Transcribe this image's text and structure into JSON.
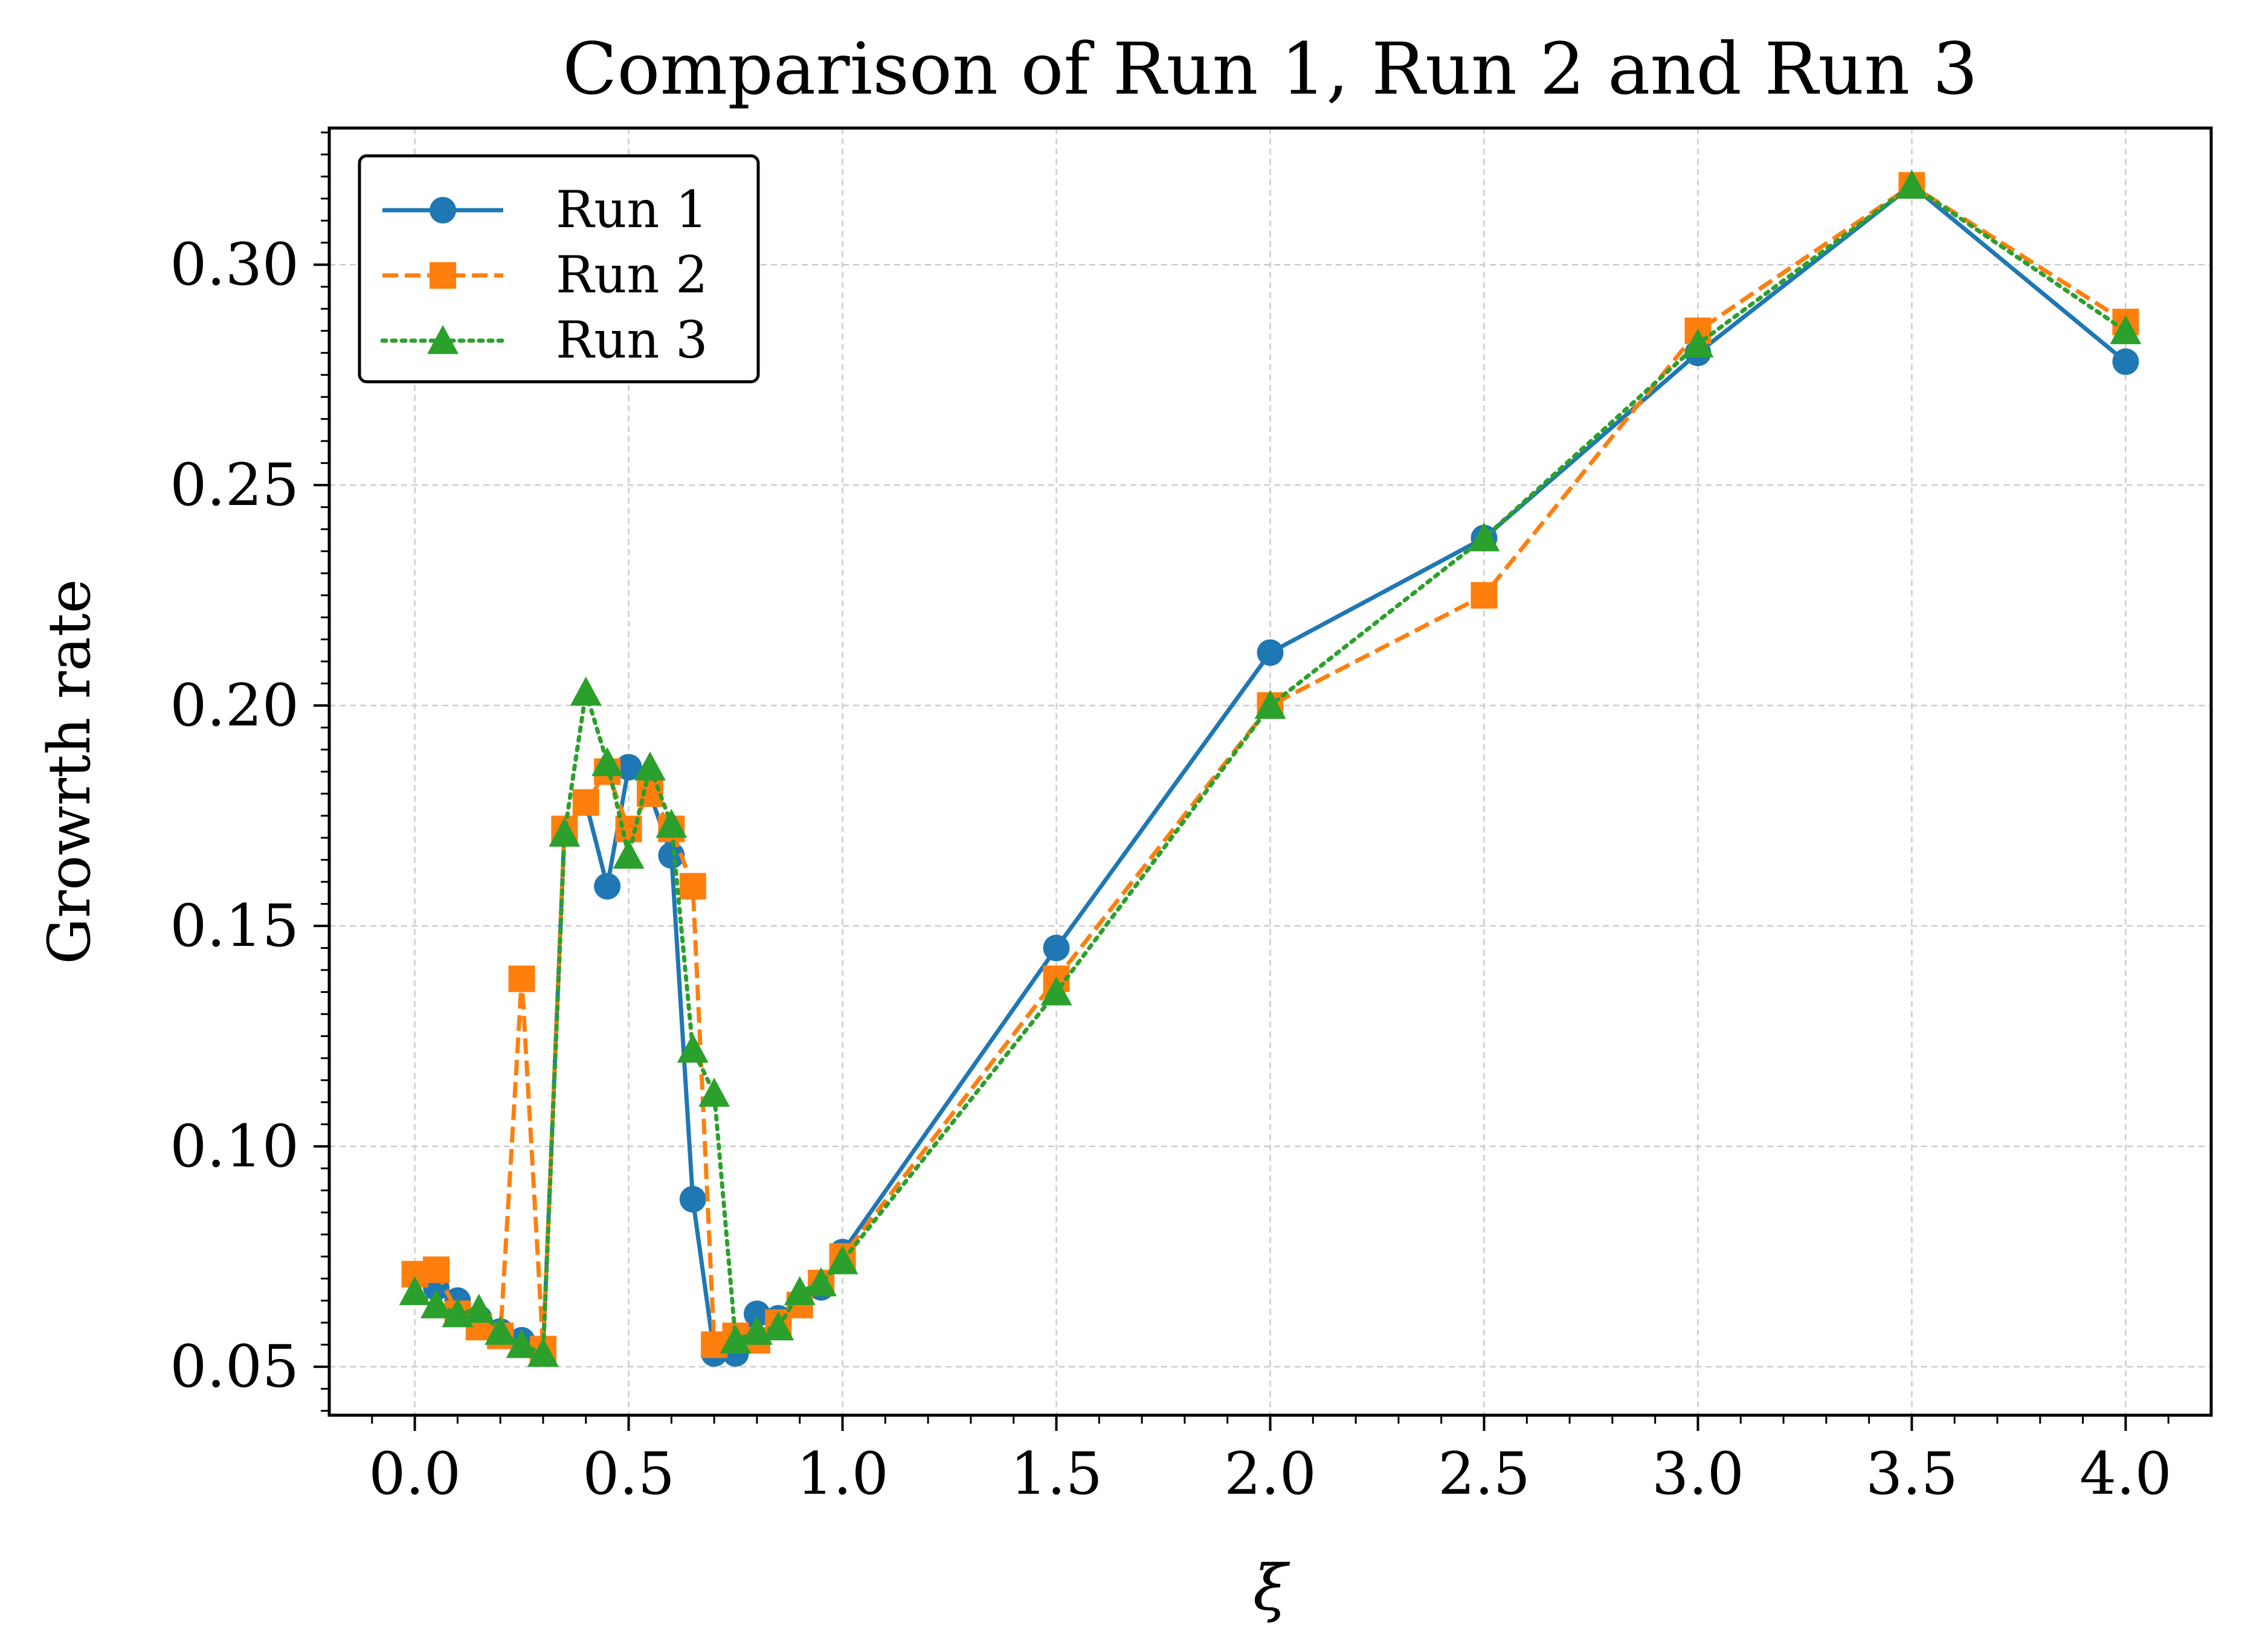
{
  "chart_data": {
    "type": "line",
    "title": "Comparison of Run 1, Run 2 and Run 3",
    "xlabel": "ξ",
    "ylabel": "Growrth rate",
    "xlim": [
      -0.2,
      4.2
    ],
    "ylim": [
      0.039,
      0.331
    ],
    "xticks": [
      0.0,
      0.5,
      1.0,
      1.5,
      2.0,
      2.5,
      3.0,
      3.5,
      4.0
    ],
    "xtick_labels": [
      "0.0",
      "0.5",
      "1.0",
      "1.5",
      "2.0",
      "2.5",
      "3.0",
      "3.5",
      "4.0"
    ],
    "yticks": [
      0.05,
      0.1,
      0.15,
      0.2,
      0.25,
      0.3
    ],
    "ytick_labels": [
      "0.05",
      "0.10",
      "0.15",
      "0.20",
      "0.25",
      "0.30"
    ],
    "grid": true,
    "legend_position": "top-left",
    "x": [
      0.0,
      0.05,
      0.1,
      0.15,
      0.2,
      0.25,
      0.3,
      0.35,
      0.4,
      0.45,
      0.5,
      0.55,
      0.6,
      0.65,
      0.7,
      0.75,
      0.8,
      0.85,
      0.9,
      0.95,
      1.0,
      1.5,
      2.0,
      2.5,
      3.0,
      3.5,
      4.0
    ],
    "series": [
      {
        "name": "Run 1",
        "color": "#1f77b4",
        "linestyle": "solid",
        "marker": "circle",
        "values": [
          0.071,
          0.068,
          0.065,
          0.061,
          0.058,
          0.056,
          0.054,
          0.172,
          0.178,
          0.159,
          0.186,
          0.18,
          0.166,
          0.088,
          0.053,
          0.053,
          0.062,
          0.061,
          0.064,
          0.068,
          0.076,
          0.145,
          0.212,
          0.238,
          0.28,
          0.318,
          0.278
        ]
      },
      {
        "name": "Run 2",
        "color": "#ff7f0e",
        "linestyle": "dashed",
        "marker": "square",
        "values": [
          0.071,
          0.072,
          0.062,
          0.059,
          0.057,
          0.138,
          0.054,
          0.172,
          0.178,
          0.185,
          0.172,
          0.18,
          0.172,
          0.159,
          0.055,
          0.057,
          0.056,
          0.06,
          0.064,
          0.069,
          0.075,
          0.138,
          0.2,
          0.225,
          0.285,
          0.318,
          0.287
        ]
      },
      {
        "name": "Run 3",
        "color": "#2ca02c",
        "linestyle": "dotted",
        "marker": "triangle",
        "values": [
          0.067,
          0.064,
          0.062,
          0.063,
          0.058,
          0.055,
          0.053,
          0.171,
          0.203,
          0.187,
          0.166,
          0.186,
          0.173,
          0.122,
          0.112,
          0.056,
          0.058,
          0.059,
          0.067,
          0.069,
          0.074,
          0.135,
          0.2,
          0.238,
          0.282,
          0.318,
          0.285
        ]
      }
    ]
  }
}
